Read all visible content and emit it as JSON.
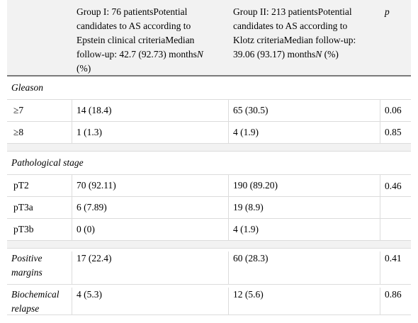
{
  "header": {
    "col1": "",
    "col2_line1": "Group I: 76 patientsPotential",
    "col2_line2": "candidates to AS according to",
    "col2_line3": "Epstein clinical criteriaMedian",
    "col2_line4a": "follow-up: 42.7 (92.73) months",
    "col2_line4b": "N",
    "col2_line5": "(%)",
    "col3_line1": "Group II: 213 patientsPotential",
    "col3_line2": "candidates to AS according to",
    "col3_line3": "Klotz criteriaMedian follow-up:",
    "col3_line4a": "39.06 (93.17) months",
    "col3_line4b": "N",
    "col3_line4c": " (%)",
    "col4": "p"
  },
  "sections": {
    "gleason": "Gleason",
    "stage": "Pathological stage"
  },
  "rows": {
    "g7": {
      "label": "≥7",
      "g1": "14 (18.4)",
      "g2": "65 (30.5)",
      "p": "0.06"
    },
    "g8": {
      "label": "≥8",
      "g1": "1 (1.3)",
      "g2": "4 (1.9)",
      "p": "0.85"
    },
    "pt2": {
      "label": "pT2",
      "g1": "70 (92.11)",
      "g2": "190 (89.20)",
      "p": "0.46"
    },
    "pt3a": {
      "label": "pT3a",
      "g1": "6 (7.89)",
      "g2": "19 (8.9)",
      "p": ""
    },
    "pt3b": {
      "label": "pT3b",
      "g1": "0 (0)",
      "g2": "4 (1.9)",
      "p": ""
    },
    "margins": {
      "label_line1": "Positive",
      "label_line2": "margins",
      "g1": "17 (22.4)",
      "g2": "60 (28.3)",
      "p": "0.41"
    },
    "relapse": {
      "label_line1": "Biochemical",
      "label_line2": "relapse",
      "g1": "4 (5.3)",
      "g2": "12 (5.6)",
      "p": "0.86"
    }
  }
}
